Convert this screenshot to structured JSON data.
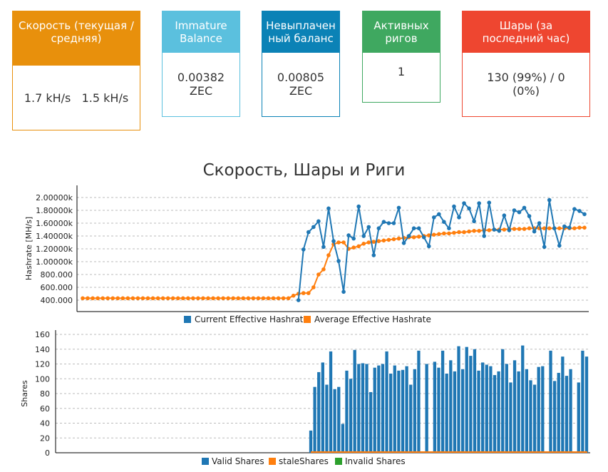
{
  "cards": [
    {
      "head": "Скорость (текущая / средняя)",
      "body": "1.7 kH/s   1.5 kH/s",
      "color": "#e8900c"
    },
    {
      "head": "Immature Balance",
      "body": "0.00382 ZEC",
      "color": "#5bc0de"
    },
    {
      "head": "Невыплаченный баланс",
      "body": "0.00805 ZEC",
      "color": "#0b82b6"
    },
    {
      "head": "Активных ригов",
      "body": "1",
      "color": "#3fa860"
    },
    {
      "head": "Шары (за последний час)",
      "body": "130 (99%) / 0 (0%)",
      "color": "#ee4630"
    }
  ],
  "chart_title": "Скорость, Шары и Риги",
  "chart_data": [
    {
      "type": "line",
      "ylabel": "Hashrate [MH/s]",
      "ylim": [
        400000,
        2000000
      ],
      "yticks": [
        "2.00000k",
        "1.80000k",
        "1.60000k",
        "1.40000k",
        "1.20000k",
        "1.00000k",
        "800.000",
        "600.000",
        "400.000"
      ],
      "grid": true,
      "legend": "bottom",
      "series": [
        {
          "name": "Current Effective Hashrate",
          "color": "#1f77b4",
          "x": [
            43,
            44,
            45,
            46,
            47,
            48,
            49,
            50,
            51,
            52,
            53,
            54,
            55,
            56,
            57,
            58,
            59,
            60,
            61,
            62,
            63,
            64,
            65,
            66,
            67,
            68,
            69,
            70,
            71,
            72,
            73,
            74,
            75,
            76,
            77,
            78,
            79,
            80,
            81,
            82,
            83,
            84,
            85,
            86,
            87,
            88,
            89,
            90,
            91,
            92,
            93,
            94,
            95,
            96,
            97,
            98,
            99,
            100
          ],
          "values": [
            400000,
            1190000,
            1460000,
            1540000,
            1630000,
            1230000,
            1830000,
            1320000,
            1010000,
            530000,
            1410000,
            1360000,
            1860000,
            1400000,
            1540000,
            1100000,
            1520000,
            1620000,
            1600000,
            1600000,
            1840000,
            1290000,
            1400000,
            1520000,
            1520000,
            1380000,
            1240000,
            1690000,
            1740000,
            1620000,
            1520000,
            1860000,
            1690000,
            1910000,
            1830000,
            1630000,
            1910000,
            1400000,
            1920000,
            1500000,
            1480000,
            1720000,
            1490000,
            1800000,
            1770000,
            1840000,
            1710000,
            1470000,
            1600000,
            1230000,
            1960000,
            1520000,
            1250000,
            1550000,
            1530000,
            1820000,
            1790000,
            1740000
          ]
        },
        {
          "name": "Average Effective Hashrate",
          "color": "#ff7f0e",
          "x": [
            0,
            1,
            2,
            3,
            4,
            5,
            6,
            7,
            8,
            9,
            10,
            11,
            12,
            13,
            14,
            15,
            16,
            17,
            18,
            19,
            20,
            21,
            22,
            23,
            24,
            25,
            26,
            27,
            28,
            29,
            30,
            31,
            32,
            33,
            34,
            35,
            36,
            37,
            38,
            39,
            40,
            41,
            42,
            43,
            44,
            45,
            46,
            47,
            48,
            49,
            50,
            51,
            52,
            53,
            54,
            55,
            56,
            57,
            58,
            59,
            60,
            61,
            62,
            63,
            64,
            65,
            66,
            67,
            68,
            69,
            70,
            71,
            72,
            73,
            74,
            75,
            76,
            77,
            78,
            79,
            80,
            81,
            82,
            83,
            84,
            85,
            86,
            87,
            88,
            89,
            90,
            91,
            92,
            93,
            94,
            95,
            96,
            97,
            98,
            99,
            100
          ],
          "values": [
            430000,
            430000,
            430000,
            430000,
            430000,
            430000,
            430000,
            430000,
            430000,
            430000,
            430000,
            430000,
            430000,
            430000,
            430000,
            430000,
            430000,
            430000,
            430000,
            430000,
            430000,
            430000,
            430000,
            430000,
            430000,
            430000,
            430000,
            430000,
            430000,
            430000,
            430000,
            430000,
            430000,
            430000,
            430000,
            430000,
            430000,
            430000,
            430000,
            430000,
            430000,
            430000,
            470000,
            500000,
            510000,
            510000,
            600000,
            800000,
            880000,
            1100000,
            1270000,
            1300000,
            1300000,
            1200000,
            1220000,
            1240000,
            1280000,
            1300000,
            1310000,
            1320000,
            1330000,
            1340000,
            1350000,
            1360000,
            1370000,
            1380000,
            1380000,
            1390000,
            1400000,
            1410000,
            1420000,
            1430000,
            1440000,
            1440000,
            1450000,
            1460000,
            1460000,
            1470000,
            1480000,
            1480000,
            1490000,
            1490000,
            1500000,
            1500000,
            1500000,
            1510000,
            1510000,
            1510000,
            1510000,
            1520000,
            1520000,
            1520000,
            1520000,
            1520000,
            1520000,
            1520000,
            1520000,
            1520000,
            1520000,
            1530000,
            1530000
          ]
        }
      ]
    },
    {
      "type": "bar",
      "ylabel": "Shares",
      "ylim": [
        0,
        160
      ],
      "yticks": [
        "160",
        "140",
        "120",
        "100",
        "80",
        "60",
        "40",
        "20",
        "0"
      ],
      "grid": true,
      "legend": "bottom",
      "series": [
        {
          "name": "Valid Shares",
          "color": "#1f77b4",
          "x": [
            0,
            1,
            2,
            3,
            4,
            5,
            6,
            7,
            8,
            9,
            10,
            11,
            12,
            13,
            14,
            15,
            16,
            17,
            18,
            19,
            20,
            21,
            22,
            23,
            24,
            25,
            26,
            27,
            29,
            31,
            32,
            33,
            34,
            35,
            36,
            37,
            38,
            39,
            40,
            41,
            42,
            43,
            44,
            45,
            46,
            47,
            48,
            49,
            50,
            51,
            52,
            53,
            54,
            55,
            56,
            57,
            58,
            60,
            61,
            62,
            63,
            64,
            65,
            67,
            68,
            69
          ],
          "values": [
            30,
            89,
            109,
            122,
            92,
            137,
            86,
            89,
            39,
            111,
            100,
            139,
            120,
            121,
            120,
            82,
            115,
            118,
            120,
            137,
            107,
            118,
            111,
            112,
            117,
            92,
            113,
            138,
            120,
            123,
            115,
            138,
            107,
            125,
            110,
            144,
            113,
            143,
            131,
            140,
            111,
            122,
            119,
            117,
            105,
            110,
            140,
            120,
            95,
            125,
            110,
            145,
            113,
            98,
            92,
            116,
            117,
            138,
            97,
            108,
            130,
            104,
            113,
            95,
            138,
            130
          ]
        },
        {
          "name": "staleShares",
          "color": "#ff7f0e",
          "values": [
            0
          ]
        },
        {
          "name": "Invalid Shares",
          "color": "#2ca02c",
          "values": [
            0
          ]
        }
      ]
    }
  ]
}
